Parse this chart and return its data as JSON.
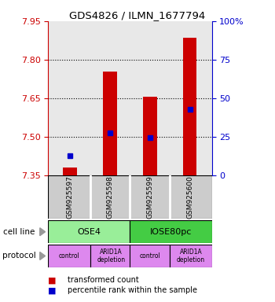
{
  "title": "GDS4826 / ILMN_1677794",
  "samples": [
    "GSM925597",
    "GSM925598",
    "GSM925599",
    "GSM925600"
  ],
  "bar_values": [
    7.38,
    7.755,
    7.655,
    7.885
  ],
  "bar_base": 7.35,
  "percentile_values": [
    7.425,
    7.515,
    7.495,
    7.605
  ],
  "ylim": [
    7.35,
    7.95
  ],
  "yticks_left": [
    7.35,
    7.5,
    7.65,
    7.8,
    7.95
  ],
  "yticks_right": [
    0,
    25,
    50,
    75,
    100
  ],
  "yticks_right_labels": [
    "0",
    "25",
    "50",
    "75",
    "100%"
  ],
  "gridlines": [
    7.5,
    7.65,
    7.8
  ],
  "bar_color": "#cc0000",
  "percentile_color": "#0000cc",
  "cell_line_colors": [
    "#99ee99",
    "#44cc44"
  ],
  "cell_lines": [
    "OSE4",
    "IOSE80pc"
  ],
  "protocol_color": "#dd88ee",
  "protocols": [
    "control",
    "ARID1A\ndepletion",
    "control",
    "ARID1A\ndepletion"
  ],
  "legend_bar_color": "#cc0000",
  "legend_percentile_color": "#0000cc",
  "legend_text_bar": "transformed count",
  "legend_text_percentile": "percentile rank within the sample",
  "ylabel_left_color": "#cc0000",
  "ylabel_right_color": "#0000cc",
  "background_color": "#ffffff",
  "plot_bg_color": "#e8e8e8",
  "sample_box_color": "#cccccc",
  "bar_width": 0.35,
  "x_positions": [
    0,
    1,
    2,
    3
  ]
}
